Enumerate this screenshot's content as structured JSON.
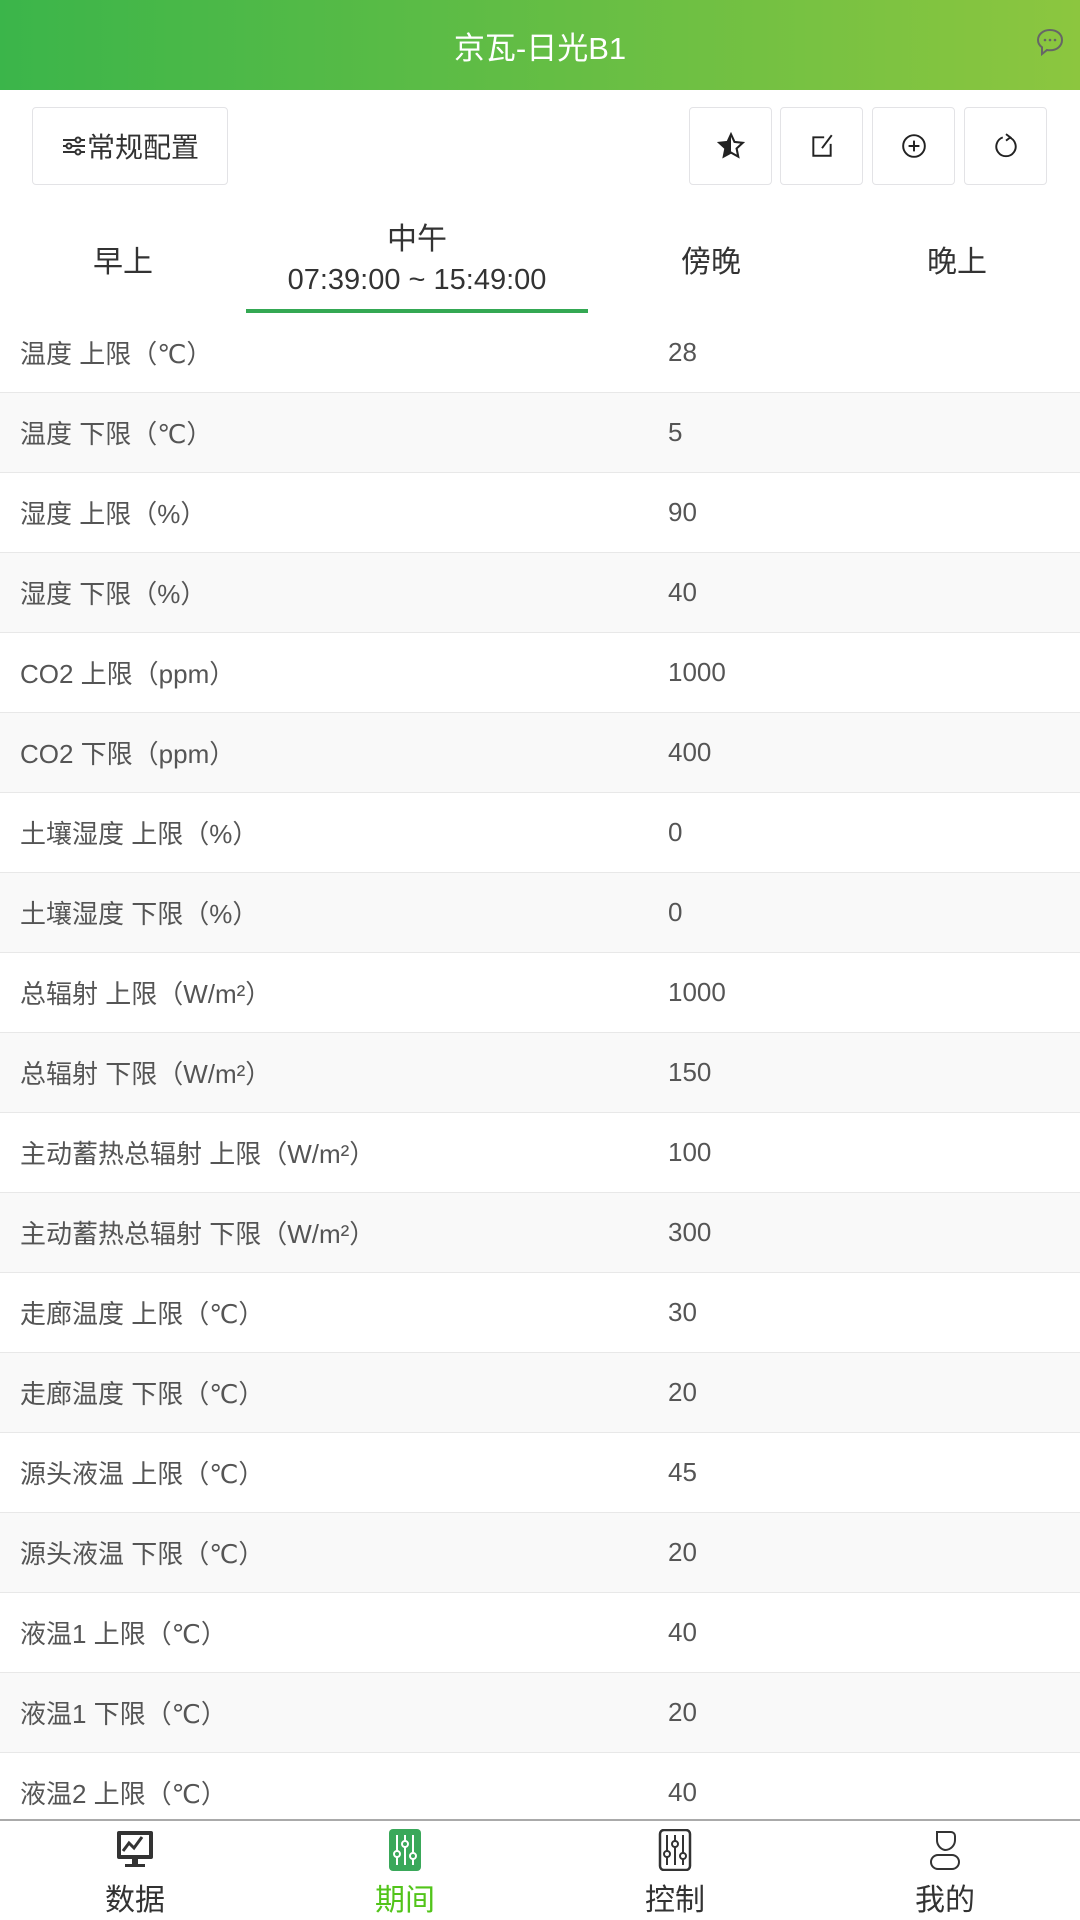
{
  "header": {
    "title": "京瓦-日光B1",
    "chat_icon": "chat-bubble-icon"
  },
  "toolbar": {
    "config_label": "常规配置",
    "icons": [
      "star-icon",
      "edit-icon",
      "add-circle-icon",
      "refresh-icon"
    ]
  },
  "tabs": [
    {
      "label": "早上"
    },
    {
      "label": "中午",
      "time": "07:39:00 ~ 15:49:00",
      "active": true
    },
    {
      "label": "傍晚"
    },
    {
      "label": "晚上"
    }
  ],
  "rows": [
    {
      "label": "温度 上限（℃）",
      "value": "28"
    },
    {
      "label": "温度 下限（℃）",
      "value": "5"
    },
    {
      "label": "湿度 上限（%）",
      "value": "90"
    },
    {
      "label": "湿度 下限（%）",
      "value": "40"
    },
    {
      "label": "CO2 上限（ppm）",
      "value": "1000"
    },
    {
      "label": "CO2 下限（ppm）",
      "value": "400"
    },
    {
      "label": "土壤湿度 上限（%）",
      "value": "0"
    },
    {
      "label": "土壤湿度 下限（%）",
      "value": "0"
    },
    {
      "label": "总辐射 上限（W/m²）",
      "value": "1000"
    },
    {
      "label": "总辐射 下限（W/m²）",
      "value": "150"
    },
    {
      "label": "主动蓄热总辐射 上限（W/m²）",
      "value": "100"
    },
    {
      "label": "主动蓄热总辐射 下限（W/m²）",
      "value": "300"
    },
    {
      "label": "走廊温度 上限（℃）",
      "value": "30"
    },
    {
      "label": "走廊温度 下限（℃）",
      "value": "20"
    },
    {
      "label": "源头液温 上限（℃）",
      "value": "45"
    },
    {
      "label": "源头液温 下限（℃）",
      "value": "20"
    },
    {
      "label": "液温1 上限（℃）",
      "value": "40"
    },
    {
      "label": "液温1 下限（℃）",
      "value": "20"
    },
    {
      "label": "液温2 上限（℃）",
      "value": "40"
    }
  ],
  "nav": [
    {
      "label": "数据"
    },
    {
      "label": "期间",
      "active": true
    },
    {
      "label": "控制"
    },
    {
      "label": "我的"
    }
  ],
  "colors": {
    "accent": "#34a853",
    "nav_active": "#52c41a"
  }
}
